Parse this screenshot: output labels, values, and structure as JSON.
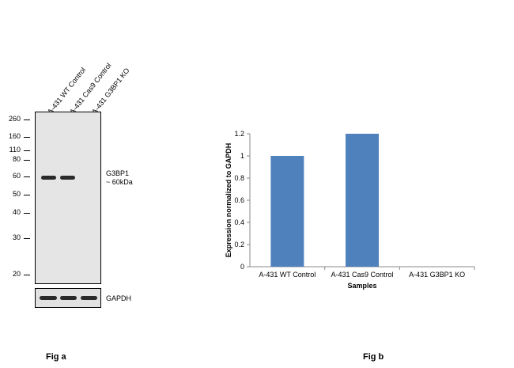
{
  "blot": {
    "lanes": [
      "A-431 WT Control",
      "A-431 Cas9 Control",
      "A-431 G3BP1 KO"
    ],
    "markers": [
      "260",
      "160",
      "110",
      "80",
      "60",
      "50",
      "40",
      "30",
      "20"
    ],
    "target_label": "G3BP1",
    "target_size": "~ 60kDa",
    "loading_control": "GAPDH",
    "target_band_intensity": [
      1.0,
      1.0,
      0.0
    ],
    "loading_band_intensity": [
      1.0,
      1.0,
      1.0
    ]
  },
  "fig_a_label": "Fig a",
  "fig_b_label": "Fig b",
  "chart_data": {
    "type": "bar",
    "categories": [
      "A-431 WT Control",
      "A-431 Cas9 Control",
      "A-431 G3BP1 KO"
    ],
    "values": [
      1.0,
      1.2,
      0.0
    ],
    "xlabel": "Samples",
    "ylabel": "Expression  normalized to GAPDH",
    "ylim": [
      0,
      1.2
    ],
    "yticks": [
      "0",
      "0.2",
      "0.4",
      "0.6",
      "0.8",
      "1",
      "1.2"
    ],
    "grid": false,
    "legend": "none",
    "bar_color": "#4f81bd"
  }
}
